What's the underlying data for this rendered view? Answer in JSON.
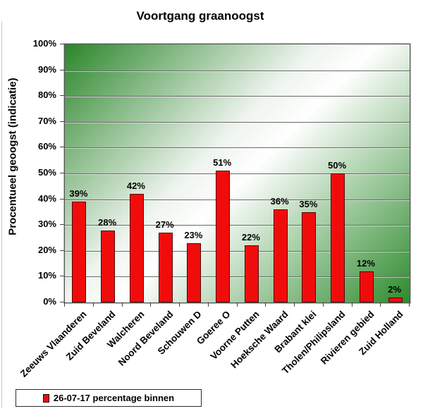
{
  "chart_data": {
    "type": "bar",
    "title": "Voortgang graanoogst",
    "ylabel": "Procentueel geoogst (indicatie)",
    "xlabel": "",
    "categories": [
      "Zeeuws Vlaanderen",
      "Zuid Beveland",
      "Walcheren",
      "Noord Beveland",
      "Schouwen D",
      "Goeree O",
      "Voorne Putten",
      "Hoeksche Waard",
      "Brabant klei",
      "Tholen/Philipsland",
      "Rivieren gebied",
      "Zuid Holland"
    ],
    "values": [
      39,
      28,
      42,
      27,
      23,
      51,
      22,
      36,
      35,
      50,
      12,
      2
    ],
    "data_labels": [
      "39%",
      "28%",
      "42%",
      "27%",
      "23%",
      "51%",
      "22%",
      "36%",
      "35%",
      "50%",
      "12%",
      "2%"
    ],
    "series_name": "26-07-17 percentage binnen",
    "ylim": [
      0,
      100
    ],
    "ytick_step": 10,
    "ytick_suffix": "%",
    "grid": true,
    "legend_position": "bottom-left",
    "colors": {
      "bar_fill": "#f10c0c",
      "bar_border": "#4f0808",
      "plot_gradient_green": "#2e8b2e",
      "gridline": "#686868"
    }
  }
}
